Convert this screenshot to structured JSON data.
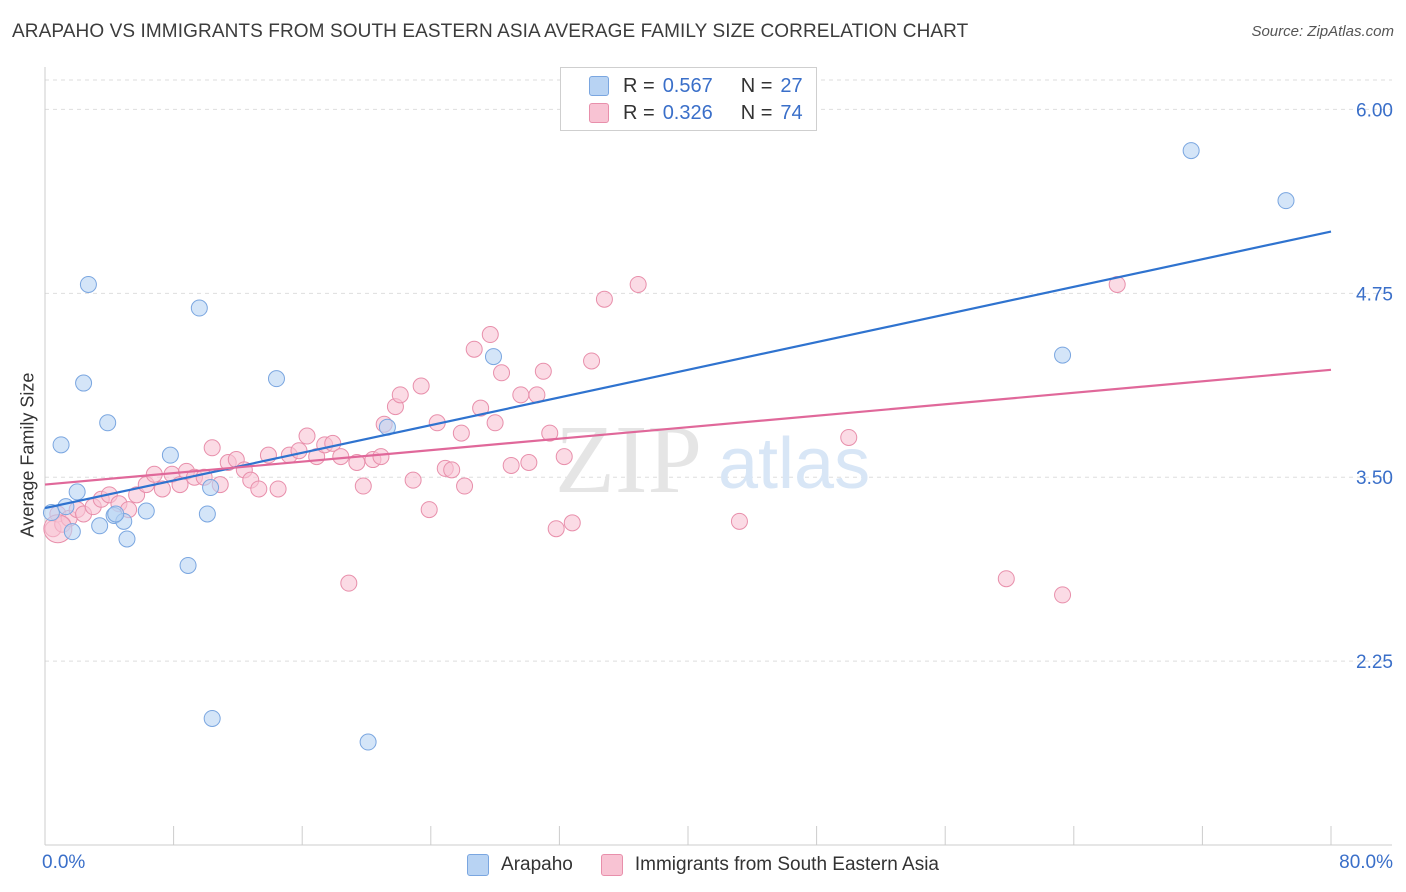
{
  "header": {
    "title": "ARAPAHO VS IMMIGRANTS FROM SOUTH EASTERN ASIA AVERAGE FAMILY SIZE CORRELATION CHART",
    "source": "Source: ZipAtlas.com"
  },
  "watermark": {
    "zip": "ZIP",
    "atlas": "atlas"
  },
  "legend_top": {
    "rows": [
      {
        "r_label": "R =",
        "r_value": "0.567",
        "n_label": "N =",
        "n_value": "27"
      },
      {
        "r_label": "R =",
        "r_value": "0.326",
        "n_label": "N =",
        "n_value": "74"
      }
    ]
  },
  "colors": {
    "blue_fill": "#b8d3f3",
    "blue_stroke": "#7aa6e0",
    "blue_line": "#2f73cf",
    "pink_fill": "#f8c3d3",
    "pink_stroke": "#e88fab",
    "pink_line": "#e0689a",
    "grid": "#dedede",
    "tick_label": "#3a6fc9"
  },
  "chart_data": {
    "type": "scatter",
    "title": "ARAPAHO VS IMMIGRANTS FROM SOUTH EASTERN ASIA AVERAGE FAMILY SIZE CORRELATION CHART",
    "xlabel": "",
    "ylabel": "Average Family Size",
    "xlim": [
      0,
      80
    ],
    "ylim": [
      1.0,
      6.2
    ],
    "x_tick_labels": [
      "0.0%",
      "80.0%"
    ],
    "y_ticks": [
      2.25,
      3.5,
      4.75,
      6.0
    ],
    "y_tick_labels": [
      "2.25",
      "3.50",
      "4.75",
      "6.00"
    ],
    "grid": true,
    "legend_position": "top-center",
    "series": [
      {
        "name": "Arapaho",
        "color": "#b8d3f3",
        "points": [
          [
            0.4,
            3.26
          ],
          [
            1.0,
            3.72
          ],
          [
            1.3,
            3.3
          ],
          [
            1.7,
            3.13
          ],
          [
            2.0,
            3.4
          ],
          [
            2.4,
            4.14
          ],
          [
            2.7,
            4.81
          ],
          [
            3.4,
            3.17
          ],
          [
            3.9,
            3.87
          ],
          [
            4.3,
            3.24
          ],
          [
            4.9,
            3.2
          ],
          [
            5.1,
            3.08
          ],
          [
            6.3,
            3.27
          ],
          [
            7.8,
            3.65
          ],
          [
            8.9,
            2.9
          ],
          [
            9.6,
            4.65
          ],
          [
            10.1,
            3.25
          ],
          [
            10.3,
            3.43
          ],
          [
            10.4,
            1.86
          ],
          [
            14.4,
            4.17
          ],
          [
            20.1,
            1.7
          ],
          [
            21.3,
            3.84
          ],
          [
            27.9,
            4.32
          ],
          [
            71.3,
            5.72
          ],
          [
            77.2,
            5.38
          ],
          [
            63.3,
            4.33
          ],
          [
            4.4,
            3.25
          ]
        ]
      },
      {
        "name": "Immigrants from South Eastern Asia",
        "color": "#f8c3d3",
        "points": [
          [
            0.5,
            3.15
          ],
          [
            0.8,
            3.25
          ],
          [
            1.1,
            3.18
          ],
          [
            1.5,
            3.22
          ],
          [
            2.0,
            3.28
          ],
          [
            2.4,
            3.25
          ],
          [
            3.0,
            3.3
          ],
          [
            3.5,
            3.35
          ],
          [
            4.0,
            3.38
          ],
          [
            4.6,
            3.32
          ],
          [
            5.2,
            3.28
          ],
          [
            5.7,
            3.38
          ],
          [
            6.3,
            3.45
          ],
          [
            6.8,
            3.52
          ],
          [
            7.3,
            3.42
          ],
          [
            7.9,
            3.52
          ],
          [
            8.4,
            3.45
          ],
          [
            8.8,
            3.54
          ],
          [
            9.3,
            3.5
          ],
          [
            9.9,
            3.5
          ],
          [
            10.4,
            3.7
          ],
          [
            10.9,
            3.45
          ],
          [
            11.4,
            3.6
          ],
          [
            11.9,
            3.62
          ],
          [
            12.4,
            3.55
          ],
          [
            12.8,
            3.48
          ],
          [
            13.3,
            3.42
          ],
          [
            13.9,
            3.65
          ],
          [
            14.5,
            3.42
          ],
          [
            15.2,
            3.65
          ],
          [
            15.8,
            3.68
          ],
          [
            16.3,
            3.78
          ],
          [
            16.9,
            3.64
          ],
          [
            17.4,
            3.72
          ],
          [
            17.9,
            3.73
          ],
          [
            18.4,
            3.64
          ],
          [
            18.9,
            2.78
          ],
          [
            19.4,
            3.6
          ],
          [
            19.8,
            3.44
          ],
          [
            20.4,
            3.62
          ],
          [
            20.9,
            3.64
          ],
          [
            21.1,
            3.86
          ],
          [
            21.8,
            3.98
          ],
          [
            22.1,
            4.06
          ],
          [
            22.9,
            3.48
          ],
          [
            23.4,
            4.12
          ],
          [
            23.9,
            3.28
          ],
          [
            24.4,
            3.87
          ],
          [
            24.9,
            3.56
          ],
          [
            25.3,
            3.55
          ],
          [
            25.9,
            3.8
          ],
          [
            26.1,
            3.44
          ],
          [
            26.7,
            4.37
          ],
          [
            27.1,
            3.97
          ],
          [
            27.7,
            4.47
          ],
          [
            28.0,
            3.87
          ],
          [
            28.4,
            4.21
          ],
          [
            29.0,
            3.58
          ],
          [
            29.6,
            4.06
          ],
          [
            30.1,
            3.6
          ],
          [
            30.6,
            4.06
          ],
          [
            31.0,
            4.22
          ],
          [
            31.4,
            3.8
          ],
          [
            31.8,
            3.15
          ],
          [
            32.3,
            3.64
          ],
          [
            32.8,
            3.19
          ],
          [
            34.0,
            4.29
          ],
          [
            34.8,
            4.71
          ],
          [
            36.9,
            4.81
          ],
          [
            43.2,
            3.2
          ],
          [
            50.0,
            3.77
          ],
          [
            59.8,
            2.81
          ],
          [
            63.3,
            2.7
          ],
          [
            66.7,
            4.81
          ]
        ]
      }
    ],
    "trend_lines": [
      {
        "name": "Arapaho",
        "x": [
          0,
          80
        ],
        "y": [
          3.29,
          5.17
        ]
      },
      {
        "name": "Immigrants from South Eastern Asia",
        "x": [
          0,
          80
        ],
        "y": [
          3.45,
          4.23
        ]
      }
    ]
  },
  "bottom_legend": {
    "items": [
      {
        "label": "Arapaho"
      },
      {
        "label": "Immigrants from South Eastern Asia"
      }
    ]
  }
}
